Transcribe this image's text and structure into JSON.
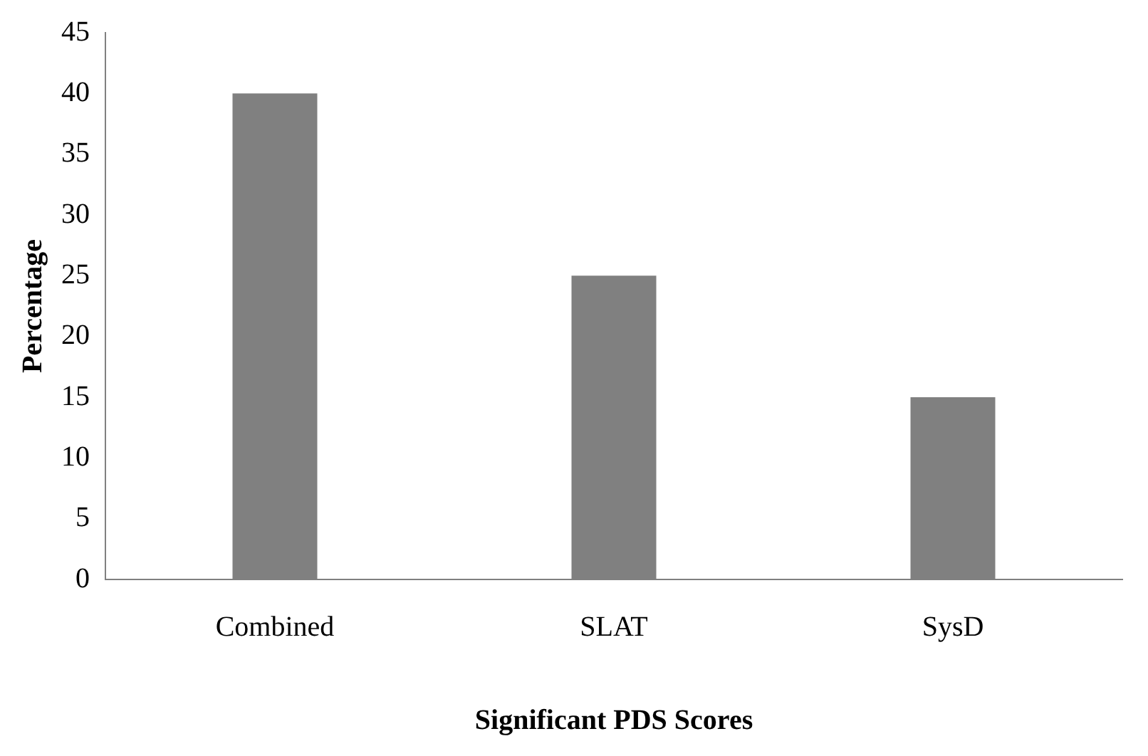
{
  "chart_data": {
    "type": "bar",
    "xlabel": "Significant PDS Scores",
    "ylabel": "Percentage",
    "categories": [
      "Combined",
      "SLAT",
      "SysD"
    ],
    "values": [
      40,
      25,
      15
    ],
    "color": "#808080",
    "ylim": [
      0,
      45
    ],
    "yticks": [
      0,
      5,
      10,
      15,
      20,
      25,
      30,
      35,
      40,
      45
    ],
    "grid": false,
    "legend": false
  }
}
